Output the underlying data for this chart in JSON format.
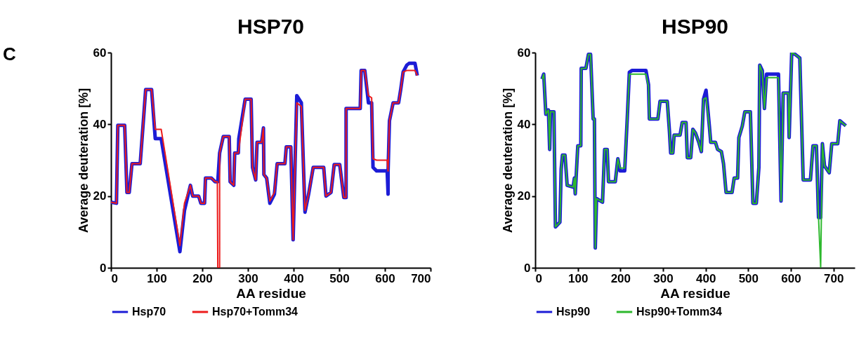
{
  "chart_data": [
    {
      "type": "line",
      "title": "HSP70",
      "xlabel": "AA residue",
      "ylabel": "Average deuteration [%]",
      "annotations": [
        "C"
      ],
      "xlim": [
        0,
        700
      ],
      "xticks": [
        0,
        100,
        200,
        300,
        400,
        500,
        600,
        700
      ],
      "ylim": [
        0,
        60
      ],
      "yticks": [
        0,
        20,
        40,
        60
      ],
      "grid": false,
      "legend": "bottom",
      "marker": "none",
      "line_style": "solid",
      "series": [
        {
          "name": "Hsp70",
          "color": "#1c1cd6",
          "x": [
            0,
            12,
            15,
            30,
            35,
            40,
            46,
            64,
            71,
            76,
            89,
            97,
            110,
            151,
            161,
            174,
            179,
            192,
            197,
            205,
            207,
            220,
            228,
            234,
            238,
            246,
            259,
            261,
            269,
            271,
            279,
            280,
            294,
            307,
            310,
            317,
            320,
            330,
            334,
            335,
            341,
            348,
            358,
            364,
            381,
            384,
            394,
            399,
            407,
            417,
            425,
            433,
            443,
            466,
            471,
            482,
            489,
            501,
            510,
            515,
            515,
            546,
            548,
            556,
            564,
            571,
            574,
            582,
            605,
            607,
            607,
            610,
            618,
            630,
            635,
            640,
            648,
            653,
            666,
            671
          ],
          "values": [
            18.3,
            18,
            39.7,
            39.7,
            21,
            21,
            29,
            29,
            41,
            49.7,
            49.7,
            36,
            36,
            4.5,
            16,
            23,
            20,
            20,
            18,
            18,
            25,
            25,
            24,
            24,
            32,
            36.6,
            36.6,
            24,
            23,
            32,
            32,
            36,
            47,
            47,
            28,
            24.5,
            35,
            35,
            39,
            26,
            25,
            18,
            20.5,
            29,
            29,
            33.7,
            33.7,
            7.8,
            48,
            46,
            15.5,
            20.6,
            28,
            28,
            20,
            21,
            28.8,
            28.8,
            19.6,
            19.6,
            44.4,
            44.4,
            55,
            55,
            46,
            46,
            28,
            27,
            27,
            20.5,
            27,
            41,
            46,
            46,
            50,
            54.6,
            56.5,
            57,
            57,
            53.6
          ]
        },
        {
          "name": "Hsp70+Tomm34",
          "color": "#ec1c1c",
          "x": [
            0,
            12,
            15,
            30,
            35,
            40,
            46,
            64,
            71,
            76,
            89,
            97,
            110,
            151,
            161,
            174,
            179,
            192,
            197,
            205,
            207,
            220,
            228,
            233,
            234,
            238,
            238,
            246,
            259,
            261,
            269,
            271,
            279,
            294,
            307,
            310,
            317,
            320,
            330,
            334,
            335,
            341,
            348,
            358,
            364,
            381,
            384,
            394,
            399,
            407,
            417,
            425,
            433,
            443,
            466,
            471,
            482,
            489,
            501,
            510,
            515,
            515,
            546,
            548,
            556,
            564,
            571,
            574,
            582,
            605,
            607,
            610,
            618,
            630,
            635,
            640,
            648,
            653,
            666,
            671
          ],
          "values": [
            18.3,
            18,
            39.7,
            39.7,
            21,
            21,
            29,
            29,
            41,
            49.7,
            49.7,
            38.6,
            38.6,
            6.2,
            18,
            23,
            20,
            20,
            18,
            18,
            25,
            25,
            24,
            24,
            0,
            0,
            32,
            36.6,
            36.6,
            24,
            23,
            32,
            32,
            47,
            47,
            28,
            24.5,
            35,
            35,
            39,
            26,
            25,
            18.6,
            21,
            29,
            29,
            33.7,
            33.7,
            7.8,
            46,
            45,
            16,
            20.6,
            28,
            28,
            20,
            21,
            28.8,
            28.8,
            19.6,
            19.6,
            44.4,
            44.4,
            55,
            55,
            48,
            47.4,
            30.4,
            30,
            30,
            27,
            41,
            46,
            46,
            50,
            54.6,
            55,
            55,
            55,
            53.6
          ]
        }
      ]
    },
    {
      "type": "line",
      "title": "HSP90",
      "xlabel": "AA residue",
      "ylabel": "Average deuteration [%]",
      "xlim": [
        0,
        750
      ],
      "xticks": [
        0,
        100,
        200,
        300,
        400,
        500,
        600,
        700
      ],
      "ylim": [
        0,
        60
      ],
      "yticks": [
        0,
        20,
        40,
        60
      ],
      "grid": false,
      "legend": "bottom",
      "marker": "none",
      "line_style": "solid",
      "series": [
        {
          "name": "Hsp90",
          "color": "#1c1cd6",
          "x": [
            16,
            20,
            25,
            31,
            34,
            36,
            44,
            47.5,
            58,
            61,
            64,
            70,
            75,
            89,
            92,
            94,
            100,
            107,
            108,
            119,
            125,
            130,
            136,
            139,
            141,
            144,
            158,
            163,
            169,
            172,
            188,
            194,
            199,
            210,
            216,
            221,
            227,
            260,
            266,
            268,
            288,
            293,
            310,
            315,
            318,
            323,
            326,
            340,
            345,
            354,
            357,
            365,
            370,
            376,
            384,
            390,
            395,
            401,
            409,
            412,
            423,
            428,
            437,
            442,
            448,
            462,
            467,
            475,
            478,
            486,
            492,
            505,
            511,
            519,
            525,
            527,
            533,
            538,
            543,
            571,
            577,
            582,
            594,
            596,
            602,
            610,
            621,
            629,
            646,
            652,
            660,
            665,
            670,
            674,
            679,
            690,
            696,
            710,
            715,
            729
          ],
          "values": [
            52.6,
            54,
            42.8,
            44,
            33,
            43.5,
            43.5,
            11.4,
            12.7,
            27.5,
            31.4,
            31.4,
            23,
            22.5,
            25,
            20.6,
            34,
            34,
            55.6,
            55.6,
            59.5,
            59.5,
            41.5,
            41.5,
            5.5,
            19.3,
            18.3,
            33,
            33,
            24,
            24,
            30.4,
            27,
            27,
            41.5,
            54.5,
            55,
            55,
            51,
            41.5,
            41.5,
            46.4,
            46.4,
            38.2,
            32,
            32,
            37,
            37,
            40.5,
            40.5,
            30.7,
            30.7,
            38.6,
            37.6,
            35,
            32.4,
            47,
            49.5,
            39.2,
            35,
            35,
            33,
            32.4,
            29,
            21,
            21,
            25,
            25,
            36.3,
            39.5,
            43.5,
            43.5,
            18,
            18,
            28,
            56.5,
            55,
            44.4,
            54,
            54,
            18.6,
            48.7,
            48.7,
            36.3,
            60,
            59.5,
            58.5,
            24.5,
            24.5,
            34,
            34,
            14,
            14,
            34.6,
            28.4,
            26.5,
            34.6,
            34.6,
            41,
            39.6
          ]
        },
        {
          "name": "Hsp90+Tomm34",
          "color": "#2db82d",
          "x": [
            16,
            20,
            25,
            31,
            34,
            36,
            44,
            47.5,
            58,
            61,
            64,
            70,
            75,
            89,
            92,
            94,
            100,
            107,
            108,
            119,
            125,
            130,
            136,
            139,
            141,
            144,
            158,
            163,
            169,
            172,
            188,
            194,
            199,
            210,
            216,
            221,
            227,
            260,
            266,
            268,
            288,
            293,
            310,
            315,
            318,
            323,
            326,
            340,
            345,
            354,
            357,
            365,
            370,
            376,
            384,
            390,
            395,
            401,
            409,
            412,
            423,
            428,
            437,
            442,
            448,
            462,
            467,
            475,
            478,
            486,
            492,
            505,
            511,
            519,
            525,
            527,
            533,
            538,
            543,
            571,
            577,
            582,
            594,
            596,
            602,
            610,
            621,
            629,
            646,
            652,
            660,
            665,
            670,
            674,
            679,
            690,
            696,
            710,
            715,
            729
          ],
          "values": [
            52.6,
            54,
            42.8,
            44,
            33,
            43.5,
            43.5,
            11.4,
            12.7,
            27.5,
            31.4,
            31.4,
            23,
            22.5,
            25,
            20.6,
            34,
            34,
            55.6,
            55.6,
            59.5,
            59.5,
            41.5,
            41.5,
            5.5,
            19.3,
            18.3,
            33,
            33,
            24,
            24,
            30.4,
            27.8,
            27.8,
            41.5,
            54,
            54,
            54,
            50.6,
            41.5,
            41.5,
            46.4,
            46.4,
            38.2,
            32,
            32,
            37,
            37,
            40.5,
            40.5,
            30.7,
            30.7,
            38.6,
            37.6,
            35,
            32.4,
            47,
            47.4,
            39.2,
            35,
            35,
            33,
            32.4,
            29,
            21,
            21,
            25,
            25,
            36.3,
            39.5,
            43.5,
            43.5,
            18,
            18,
            28,
            56.5,
            54.6,
            44.4,
            53,
            53,
            18.6,
            48.7,
            48.7,
            36.3,
            60,
            59.5,
            58.5,
            24.5,
            24.5,
            34,
            34,
            14,
            0,
            34.6,
            28.4,
            26.5,
            34.6,
            34.6,
            41,
            39.6
          ]
        }
      ]
    }
  ]
}
